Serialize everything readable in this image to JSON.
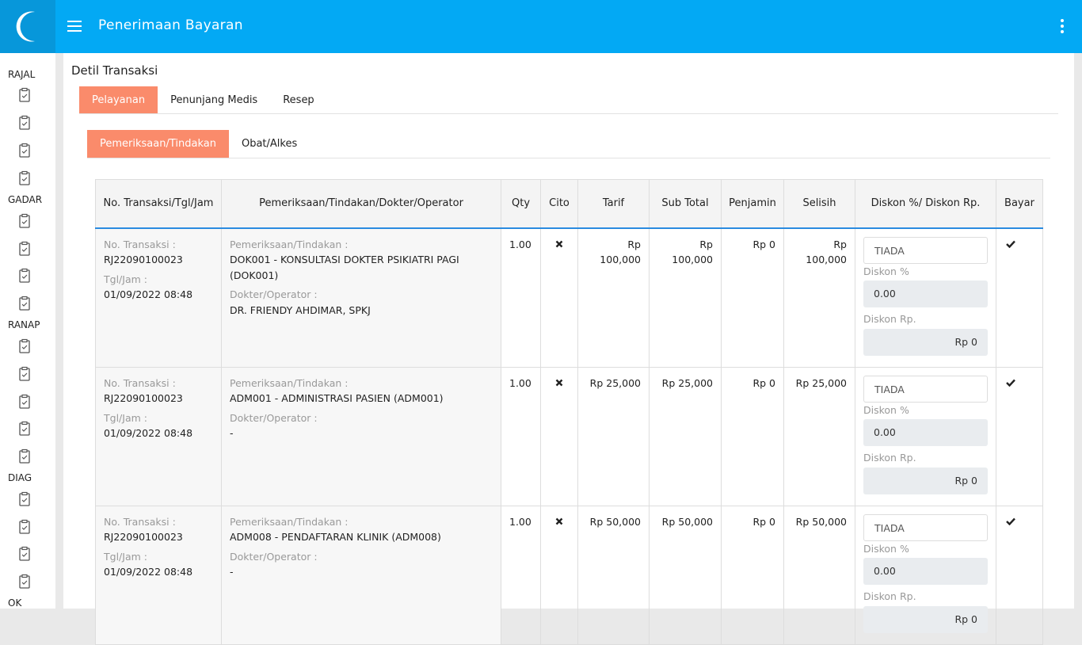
{
  "header": {
    "title": "Penerimaan Bayaran"
  },
  "sidebar": {
    "sections": [
      "RAJAL",
      "GADAR",
      "RANAP",
      "DIAG",
      "OK"
    ]
  },
  "page_title": "Detil Transaksi",
  "tabs": [
    "Pelayanan",
    "Penunjang Medis",
    "Resep"
  ],
  "subtabs": [
    "Pemeriksaan/Tindakan",
    "Obat/Alkes"
  ],
  "table": {
    "columns": [
      "No. Transaksi/Tgl/Jam",
      "Pemeriksaan/Tindakan/Dokter/Operator",
      "Qty",
      "Cito",
      "Tarif",
      "Sub Total",
      "Penjamin",
      "Selisih",
      "Diskon %/ Diskon Rp.",
      "Bayar"
    ],
    "rows": [
      {
        "no_label": "No. Transaksi :",
        "no": "RJ22090100023",
        "time_label": "Tgl/Jam :",
        "time": "01/09/2022 08:48",
        "service_label": "Pemeriksaan/Tindakan :",
        "service": "DOK001 - KONSULTASI DOKTER PSIKIATRI PAGI (DOK001)",
        "doctor_label": "Dokter/Operator :",
        "doctor": "DR. FRIENDY AHDIMAR, SPKJ",
        "qty": "1.00",
        "tarif": "Rp 100,000",
        "subtotal": "Rp 100,000",
        "penjamin": "Rp 0",
        "selisih": "Rp 100,000",
        "diskon_type": "TIADA",
        "diskon_pct_label": "Diskon %",
        "diskon_pct": "0.00",
        "diskon_rp_label": "Diskon Rp.",
        "diskon_rp": "Rp 0"
      },
      {
        "no_label": "No. Transaksi :",
        "no": "RJ22090100023",
        "time_label": "Tgl/Jam :",
        "time": "01/09/2022 08:48",
        "service_label": "Pemeriksaan/Tindakan :",
        "service": "ADM001 - ADMINISTRASI PASIEN (ADM001)",
        "doctor_label": "Dokter/Operator :",
        "doctor": "-",
        "qty": "1.00",
        "tarif": "Rp 25,000",
        "subtotal": "Rp 25,000",
        "penjamin": "Rp 0",
        "selisih": "Rp 25,000",
        "diskon_type": "TIADA",
        "diskon_pct_label": "Diskon %",
        "diskon_pct": "0.00",
        "diskon_rp_label": "Diskon Rp.",
        "diskon_rp": "Rp 0"
      },
      {
        "no_label": "No. Transaksi :",
        "no": "RJ22090100023",
        "time_label": "Tgl/Jam :",
        "time": "01/09/2022 08:48",
        "service_label": "Pemeriksaan/Tindakan :",
        "service": "ADM008 - PENDAFTARAN KLINIK (ADM008)",
        "doctor_label": "Dokter/Operator :",
        "doctor": "-",
        "qty": "1.00",
        "tarif": "Rp 50,000",
        "subtotal": "Rp 50,000",
        "penjamin": "Rp 0",
        "selisih": "Rp 50,000",
        "diskon_type": "TIADA",
        "diskon_pct_label": "Diskon %",
        "diskon_pct": "0.00",
        "diskon_rp_label": "Diskon Rp.",
        "diskon_rp": "Rp 0"
      }
    ]
  }
}
